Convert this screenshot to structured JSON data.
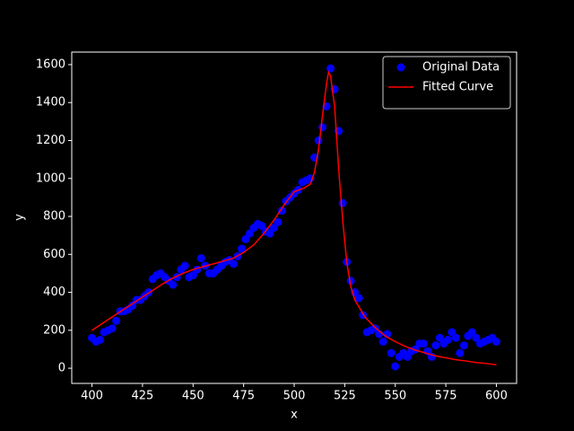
{
  "chart_data": {
    "type": "scatter",
    "xlabel": "x",
    "ylabel": "y",
    "xlim": [
      390,
      610
    ],
    "ylim": [
      -80,
      1666
    ],
    "xticks": [
      400,
      425,
      450,
      475,
      500,
      525,
      550,
      575,
      600
    ],
    "yticks": [
      0,
      200,
      400,
      600,
      800,
      1000,
      1200,
      1400,
      1600
    ],
    "legend": "upper right",
    "series": [
      {
        "name": "Original Data",
        "color": "#0000ff",
        "style": "markers",
        "x": [
          400,
          402,
          404,
          406,
          408,
          410,
          412,
          414,
          416,
          418,
          420,
          422,
          424,
          426,
          428,
          430,
          432,
          434,
          436,
          438,
          440,
          442,
          444,
          446,
          448,
          450,
          452,
          454,
          456,
          458,
          460,
          462,
          464,
          466,
          468,
          470,
          472,
          474,
          476,
          478,
          480,
          482,
          484,
          486,
          488,
          490,
          492,
          494,
          496,
          498,
          500,
          502,
          504,
          506,
          508,
          510,
          512,
          514,
          516,
          518,
          520,
          522,
          524,
          526,
          528,
          530,
          532,
          534,
          536,
          538,
          540,
          542,
          544,
          546,
          548,
          550,
          552,
          554,
          556,
          558,
          560,
          562,
          564,
          566,
          568,
          570,
          572,
          574,
          576,
          578,
          580,
          582,
          584,
          586,
          588,
          590,
          592,
          594,
          596,
          598,
          600
        ],
        "values": [
          160,
          140,
          150,
          190,
          200,
          210,
          250,
          300,
          300,
          310,
          330,
          360,
          360,
          380,
          400,
          470,
          490,
          500,
          480,
          460,
          440,
          480,
          520,
          540,
          480,
          490,
          520,
          580,
          540,
          500,
          500,
          520,
          540,
          560,
          570,
          550,
          590,
          630,
          680,
          710,
          740,
          760,
          750,
          720,
          710,
          740,
          770,
          830,
          880,
          900,
          920,
          940,
          980,
          990,
          1000,
          1110,
          1200,
          1270,
          1380,
          1580,
          1470,
          1250,
          870,
          560,
          460,
          400,
          370,
          280,
          190,
          200,
          210,
          180,
          140,
          180,
          80,
          10,
          60,
          80,
          60,
          90,
          100,
          130,
          130,
          90,
          60,
          120,
          160,
          130,
          150,
          190,
          160,
          80,
          120,
          170,
          190,
          160,
          130,
          140,
          150,
          160,
          140
        ]
      },
      {
        "name": "Fitted Curve",
        "color": "#ff0000",
        "style": "line",
        "x": [
          400,
          405,
          410,
          415,
          420,
          425,
          430,
          435,
          440,
          445,
          450,
          455,
          460,
          465,
          470,
          475,
          480,
          485,
          490,
          495,
          500,
          505,
          508,
          510,
          512,
          514,
          516,
          517,
          518,
          520,
          522,
          524,
          526,
          528,
          530,
          535,
          540,
          545,
          550,
          555,
          560,
          565,
          570,
          575,
          580,
          585,
          590,
          595,
          600
        ],
        "values": [
          200,
          235,
          270,
          305,
          340,
          375,
          410,
          445,
          475,
          500,
          520,
          535,
          550,
          565,
          580,
          610,
          650,
          710,
          780,
          860,
          930,
          950,
          970,
          1030,
          1150,
          1330,
          1500,
          1560,
          1540,
          1380,
          1050,
          780,
          560,
          430,
          360,
          270,
          215,
          170,
          140,
          115,
          95,
          80,
          65,
          55,
          45,
          38,
          30,
          25,
          18
        ]
      }
    ]
  }
}
